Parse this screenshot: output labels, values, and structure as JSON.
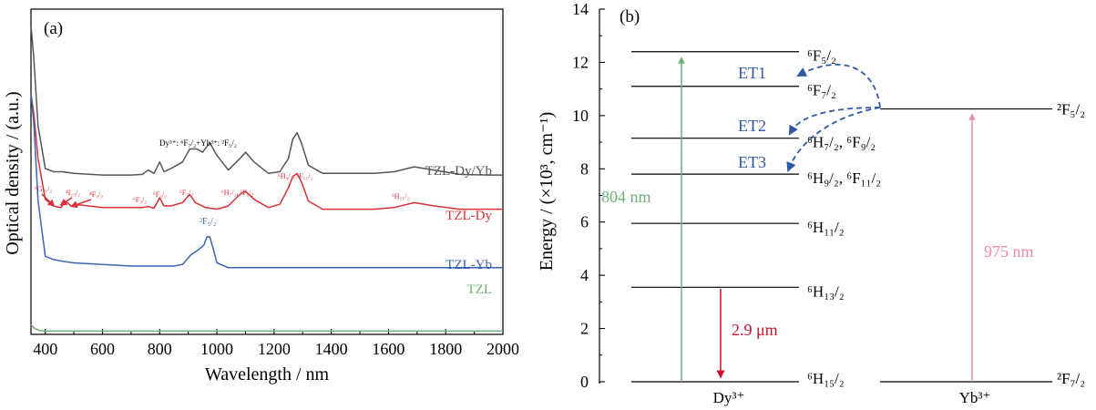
{
  "chart_data": [
    {
      "type": "line",
      "panel_label": "(a)",
      "xlabel": "Wavelength / nm",
      "ylabel": "Optical density / (a.u.)",
      "xlim": [
        350,
        2000
      ],
      "ylim": [
        0,
        10
      ],
      "xticks": [
        400,
        600,
        800,
        1000,
        1200,
        1400,
        1600,
        1800,
        2000
      ],
      "xtick_labels": [
        "400",
        "600",
        "800",
        "1000",
        "1200",
        "1400",
        "1600",
        "1800",
        "2000"
      ],
      "grid": false,
      "series": [
        {
          "name": "TZL-Dy/Yb",
          "color": "#555555",
          "x": [
            350,
            360,
            375,
            400,
            430,
            460,
            500,
            600,
            700,
            740,
            760,
            780,
            800,
            815,
            840,
            880,
            905,
            930,
            950,
            975,
            1000,
            1040,
            1080,
            1100,
            1130,
            1180,
            1220,
            1250,
            1265,
            1280,
            1295,
            1320,
            1370,
            1450,
            1550,
            1620,
            1690,
            1760,
            1850,
            1950,
            2000
          ],
          "y": [
            9.5,
            8.5,
            6.4,
            5.1,
            5.0,
            5.0,
            4.95,
            4.9,
            4.9,
            4.92,
            5.05,
            4.95,
            5.3,
            5.0,
            5.1,
            5.3,
            5.7,
            5.7,
            5.6,
            5.9,
            5.5,
            5.05,
            5.4,
            5.6,
            5.3,
            4.95,
            5.0,
            5.4,
            6.0,
            6.2,
            5.9,
            5.2,
            4.95,
            4.95,
            4.95,
            5.0,
            5.15,
            5.05,
            4.92,
            4.9,
            4.9
          ]
        },
        {
          "name": "TZL-Dy",
          "color": "#d9303a",
          "x": [
            350,
            360,
            375,
            400,
            430,
            440,
            455,
            470,
            490,
            520,
            600,
            700,
            740,
            760,
            780,
            800,
            815,
            840,
            880,
            905,
            925,
            960,
            1000,
            1040,
            1080,
            1100,
            1130,
            1180,
            1220,
            1250,
            1265,
            1280,
            1295,
            1320,
            1370,
            1450,
            1550,
            1620,
            1690,
            1760,
            1850,
            1950,
            2000
          ],
          "y": [
            7.4,
            6.8,
            5.4,
            4.15,
            3.95,
            3.92,
            3.9,
            4.1,
            3.95,
            3.98,
            3.9,
            3.9,
            3.9,
            3.93,
            3.88,
            4.2,
            3.95,
            3.95,
            4.05,
            4.3,
            4.05,
            3.9,
            3.85,
            3.95,
            4.3,
            4.4,
            4.15,
            3.9,
            4.0,
            4.5,
            4.85,
            4.95,
            4.7,
            4.1,
            3.85,
            3.85,
            3.85,
            3.9,
            4.05,
            3.95,
            3.85,
            3.85,
            3.85
          ]
        },
        {
          "name": "TZL-Yb",
          "color": "#3a63b0",
          "x": [
            350,
            360,
            375,
            400,
            430,
            460,
            500,
            600,
            700,
            800,
            850,
            880,
            910,
            935,
            955,
            965,
            975,
            985,
            1000,
            1040,
            1100,
            1200,
            1400,
            1600,
            1800,
            2000
          ],
          "y": [
            7.4,
            6.5,
            4.1,
            2.4,
            2.3,
            2.25,
            2.2,
            2.15,
            2.1,
            2.1,
            2.1,
            2.15,
            2.45,
            2.6,
            2.75,
            3.0,
            3.0,
            2.7,
            2.2,
            2.05,
            2.05,
            2.05,
            2.05,
            2.05,
            2.05,
            2.05
          ]
        },
        {
          "name": "TZL",
          "color": "#6faf76",
          "x": [
            350,
            360,
            380,
            400,
            600,
            1000,
            1500,
            2000
          ],
          "y": [
            0.3,
            0.2,
            0.12,
            0.1,
            0.1,
            0.1,
            0.1,
            0.1
          ]
        }
      ],
      "annotations": [
        {
          "text": "Dy³⁺: ⁶F₇/₂+Yb³⁺: ²F₅/₂",
          "color": "#000000"
        },
        {
          "text": "⁶G₁₁/₂",
          "color": "#d9303a"
        },
        {
          "text": "⁴I₁₅/₂",
          "color": "#d9303a"
        },
        {
          "text": "⁴F₉/₂",
          "color": "#d9303a"
        },
        {
          "text": "⁶F₃/₂",
          "color": "#d9303a"
        },
        {
          "text": "⁶F₅/₂",
          "color": "#d9303a"
        },
        {
          "text": "⁶F₇/₂",
          "color": "#d9303a"
        },
        {
          "text": "⁶H₇/₂, ⁶F₉/₂",
          "color": "#d9303a"
        },
        {
          "text": "⁶H₉/₂, ⁶F₁₁/₂",
          "color": "#d9303a"
        },
        {
          "text": "⁶H₁₁/₂",
          "color": "#d9303a"
        },
        {
          "text": "²F₅/₂",
          "color": "#3a63b0"
        }
      ]
    },
    {
      "type": "diagram",
      "panel_label": "(b)",
      "ylabel": "Energy / (×10³, cm⁻¹)",
      "ylim": [
        0,
        14
      ],
      "yticks": [
        0,
        2,
        4,
        6,
        8,
        10,
        12,
        14
      ],
      "xtick_labels": [
        "Dy³⁺",
        "Yb³⁺"
      ],
      "dy_levels": [
        {
          "label": "⁶H₁₅/₂",
          "energy": 0
        },
        {
          "label": "⁶H₁₃/₂",
          "energy": 3.55
        },
        {
          "label": "⁶H₁₁/₂",
          "energy": 5.95
        },
        {
          "label": "⁶H₉/₂, ⁶F₁₁/₂",
          "energy": 7.8
        },
        {
          "label": "⁶H₇/₂, ⁶F₉/₂",
          "energy": 9.15
        },
        {
          "label": "⁶F₇/₂",
          "energy": 11.1
        },
        {
          "label": "⁶F₅/₂",
          "energy": 12.4
        }
      ],
      "yb_levels": [
        {
          "label": "²F₇/₂",
          "energy": 0
        },
        {
          "label": "²F₅/₂",
          "energy": 10.25
        }
      ],
      "transitions": [
        {
          "label": "804 nm",
          "ion": "Dy",
          "from": 0,
          "to": 12.4,
          "color": "#6faf76"
        },
        {
          "label": "2.9 μm",
          "ion": "Dy",
          "from": 3.55,
          "to": 0,
          "color": "#c8102e"
        },
        {
          "label": "975 nm",
          "ion": "Yb",
          "from": 0,
          "to": 10.25,
          "color": "#e88aab"
        }
      ],
      "energy_transfer": [
        {
          "label": "ET1",
          "to": 11.1,
          "color": "#2e58a6"
        },
        {
          "label": "ET2",
          "to": 9.15,
          "color": "#2e58a6"
        },
        {
          "label": "ET3",
          "to": 7.8,
          "color": "#2e58a6"
        }
      ]
    }
  ]
}
